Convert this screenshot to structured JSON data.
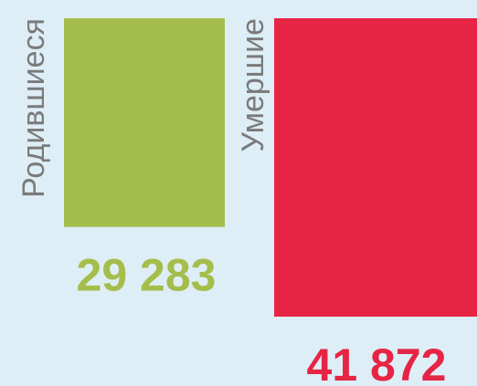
{
  "chart_data": {
    "type": "bar",
    "categories": [
      "Родившиеся",
      "Умершие"
    ],
    "series": [
      {
        "colors": [
          "#a5bd4b",
          "#e62545"
        ],
        "values": [
          29283,
          41872
        ],
        "value_labels": [
          "29 283",
          "41 872"
        ]
      }
    ]
  }
}
